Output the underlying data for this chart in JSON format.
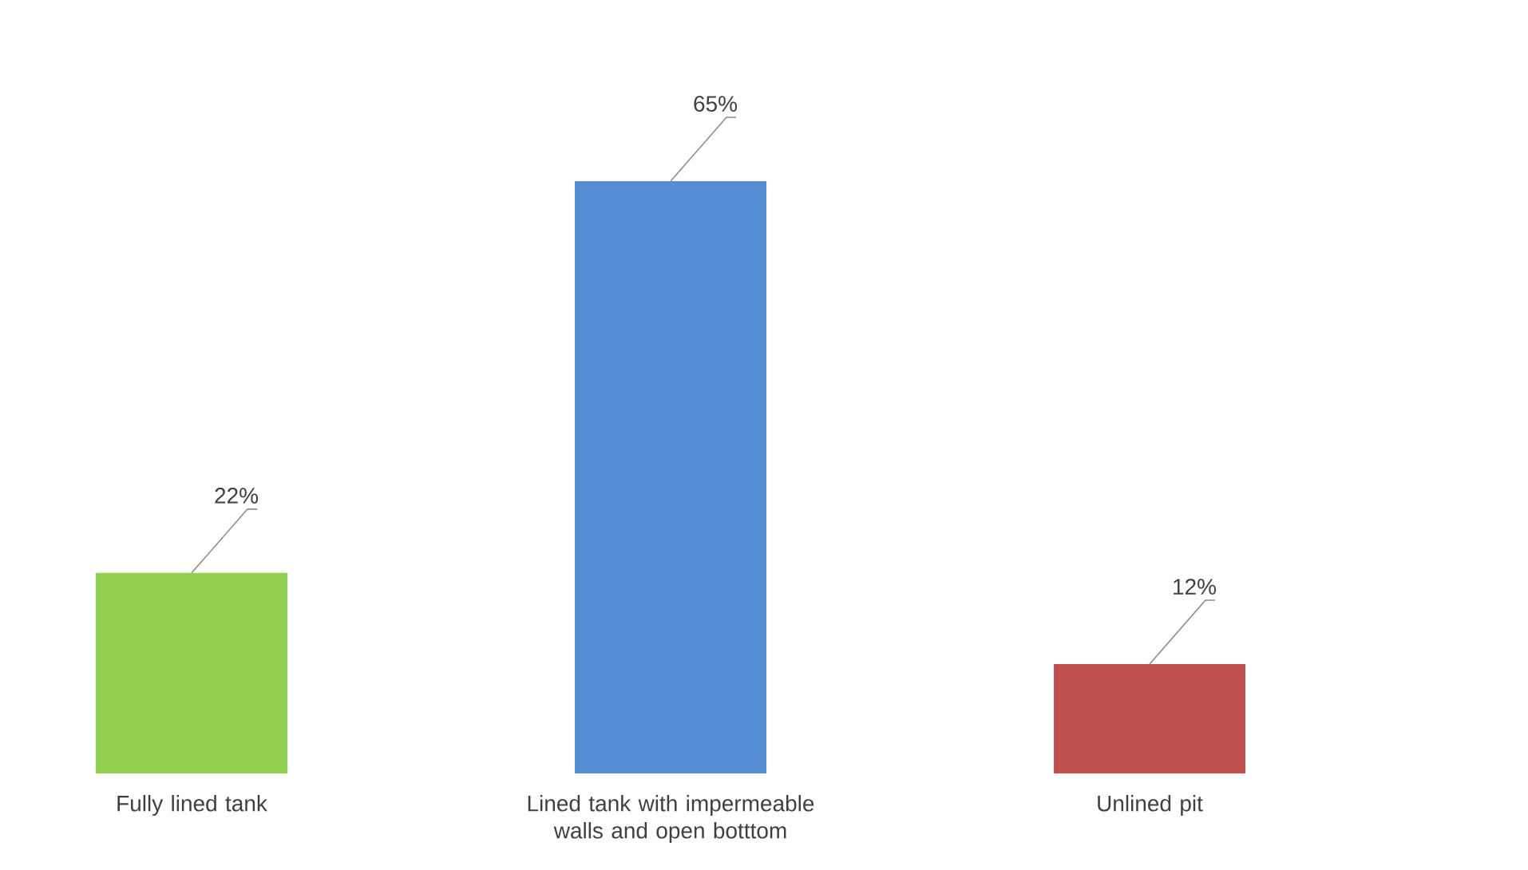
{
  "chart_data": {
    "type": "bar",
    "categories": [
      "Fully lined tank",
      "Lined tank with impermeable walls and open botttom",
      "Unlined pit"
    ],
    "values": [
      22,
      65,
      12
    ],
    "colors": [
      "#92d050",
      "#558ed5",
      "#c0504d"
    ],
    "value_labels": [
      "22%",
      "65%",
      "12%"
    ]
  }
}
